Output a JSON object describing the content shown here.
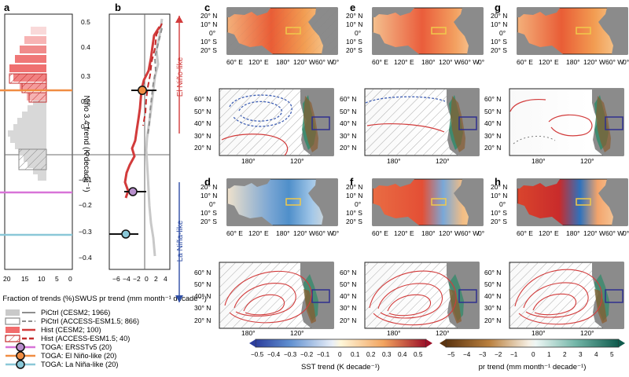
{
  "figure": {
    "colors": {
      "ocean_warm": "#f4a15a",
      "ocean_hot": "#d94c3a",
      "ocean_cool": "#4f8fca",
      "land": "#8b8b8b",
      "box_yellow": "#f0c94b",
      "box_navy": "#2f2f8f",
      "pictrl_cesm2": "#c9c9c9",
      "hist_cesm2": "#f26c6c",
      "hist_access": "#c42d2d",
      "toga_ersst": "#6f5f8f",
      "toga_el": "#f08d43",
      "toga_la": "#8ac8d8",
      "pr_positive": "#4a9a85",
      "pr_negative": "#8b5a2b"
    },
    "panel_labels": {
      "a": "a",
      "b": "b",
      "c": "c",
      "d": "d",
      "e": "e",
      "f": "f",
      "g": "g",
      "h": "h"
    },
    "center_axis": {
      "title": "Niño 3.4 trend (K decade⁻¹)",
      "ticks": [
        "0.5",
        "0.4",
        "0.3",
        "0.2",
        "0.1",
        "0",
        "−0.1",
        "−0.2",
        "−0.3",
        "−0.4"
      ]
    },
    "panel_a": {
      "xlabel": "Fraction of trends (%)",
      "xticks": [
        "20",
        "15",
        "10",
        "5",
        "0"
      ]
    },
    "panel_b": {
      "xlabel": "SWUS pr trend (mm month⁻¹ decade⁻¹)",
      "xticks": [
        "−6",
        "−4",
        "−2",
        "0",
        "2",
        "4"
      ],
      "el_nino_label": "El Niño-like",
      "la_nina_label": "La Niña-like"
    },
    "legend": [
      {
        "label": "PiCtrl (CESM2; 1966)",
        "color": "#c9c9c9"
      },
      {
        "label": "PiCtrl (ACCESS-ESM1.5; 866)",
        "color": "#8a8a8a"
      },
      {
        "label": "Hist (CESM2; 100)",
        "color": "#f26c6c"
      },
      {
        "label": "Hist (ACCESS-ESM1.5; 40)",
        "color": "#c42d2d"
      },
      {
        "label": "TOGA: ERSSTv5 (20)",
        "color": "#6f5f8f"
      },
      {
        "label": "TOGA: El Niño-like (20)",
        "color": "#f08d43"
      },
      {
        "label": "TOGA: La Niña-like (20)",
        "color": "#8ac8d8"
      }
    ],
    "pacific_axes": {
      "lat_ticks": [
        "20° N",
        "10° N",
        "0°",
        "10° S",
        "20° S"
      ],
      "lon_ticks": [
        "60° E",
        "120° E",
        "180°",
        "120° W",
        "60° W",
        "0°"
      ]
    },
    "na_axes": {
      "lat_ticks": [
        "60° N",
        "50° N",
        "40° N",
        "30° N",
        "20° N"
      ],
      "lon_ticks": [
        "180°",
        "120°"
      ]
    },
    "colorbars": {
      "sst": {
        "title": "SST trend (K decade⁻¹)",
        "ticks": [
          "−0.5",
          "−0.4",
          "−0.3",
          "−0.2",
          "−0.1",
          "0",
          "0.1",
          "0.2",
          "0.3",
          "0.4",
          "0.5"
        ]
      },
      "pr": {
        "title": "pr trend (mm month⁻¹ decade⁻¹)",
        "ticks": [
          "−5",
          "−4",
          "−3",
          "−2",
          "−1",
          "0",
          "1",
          "2",
          "3",
          "4",
          "5"
        ]
      }
    }
  }
}
